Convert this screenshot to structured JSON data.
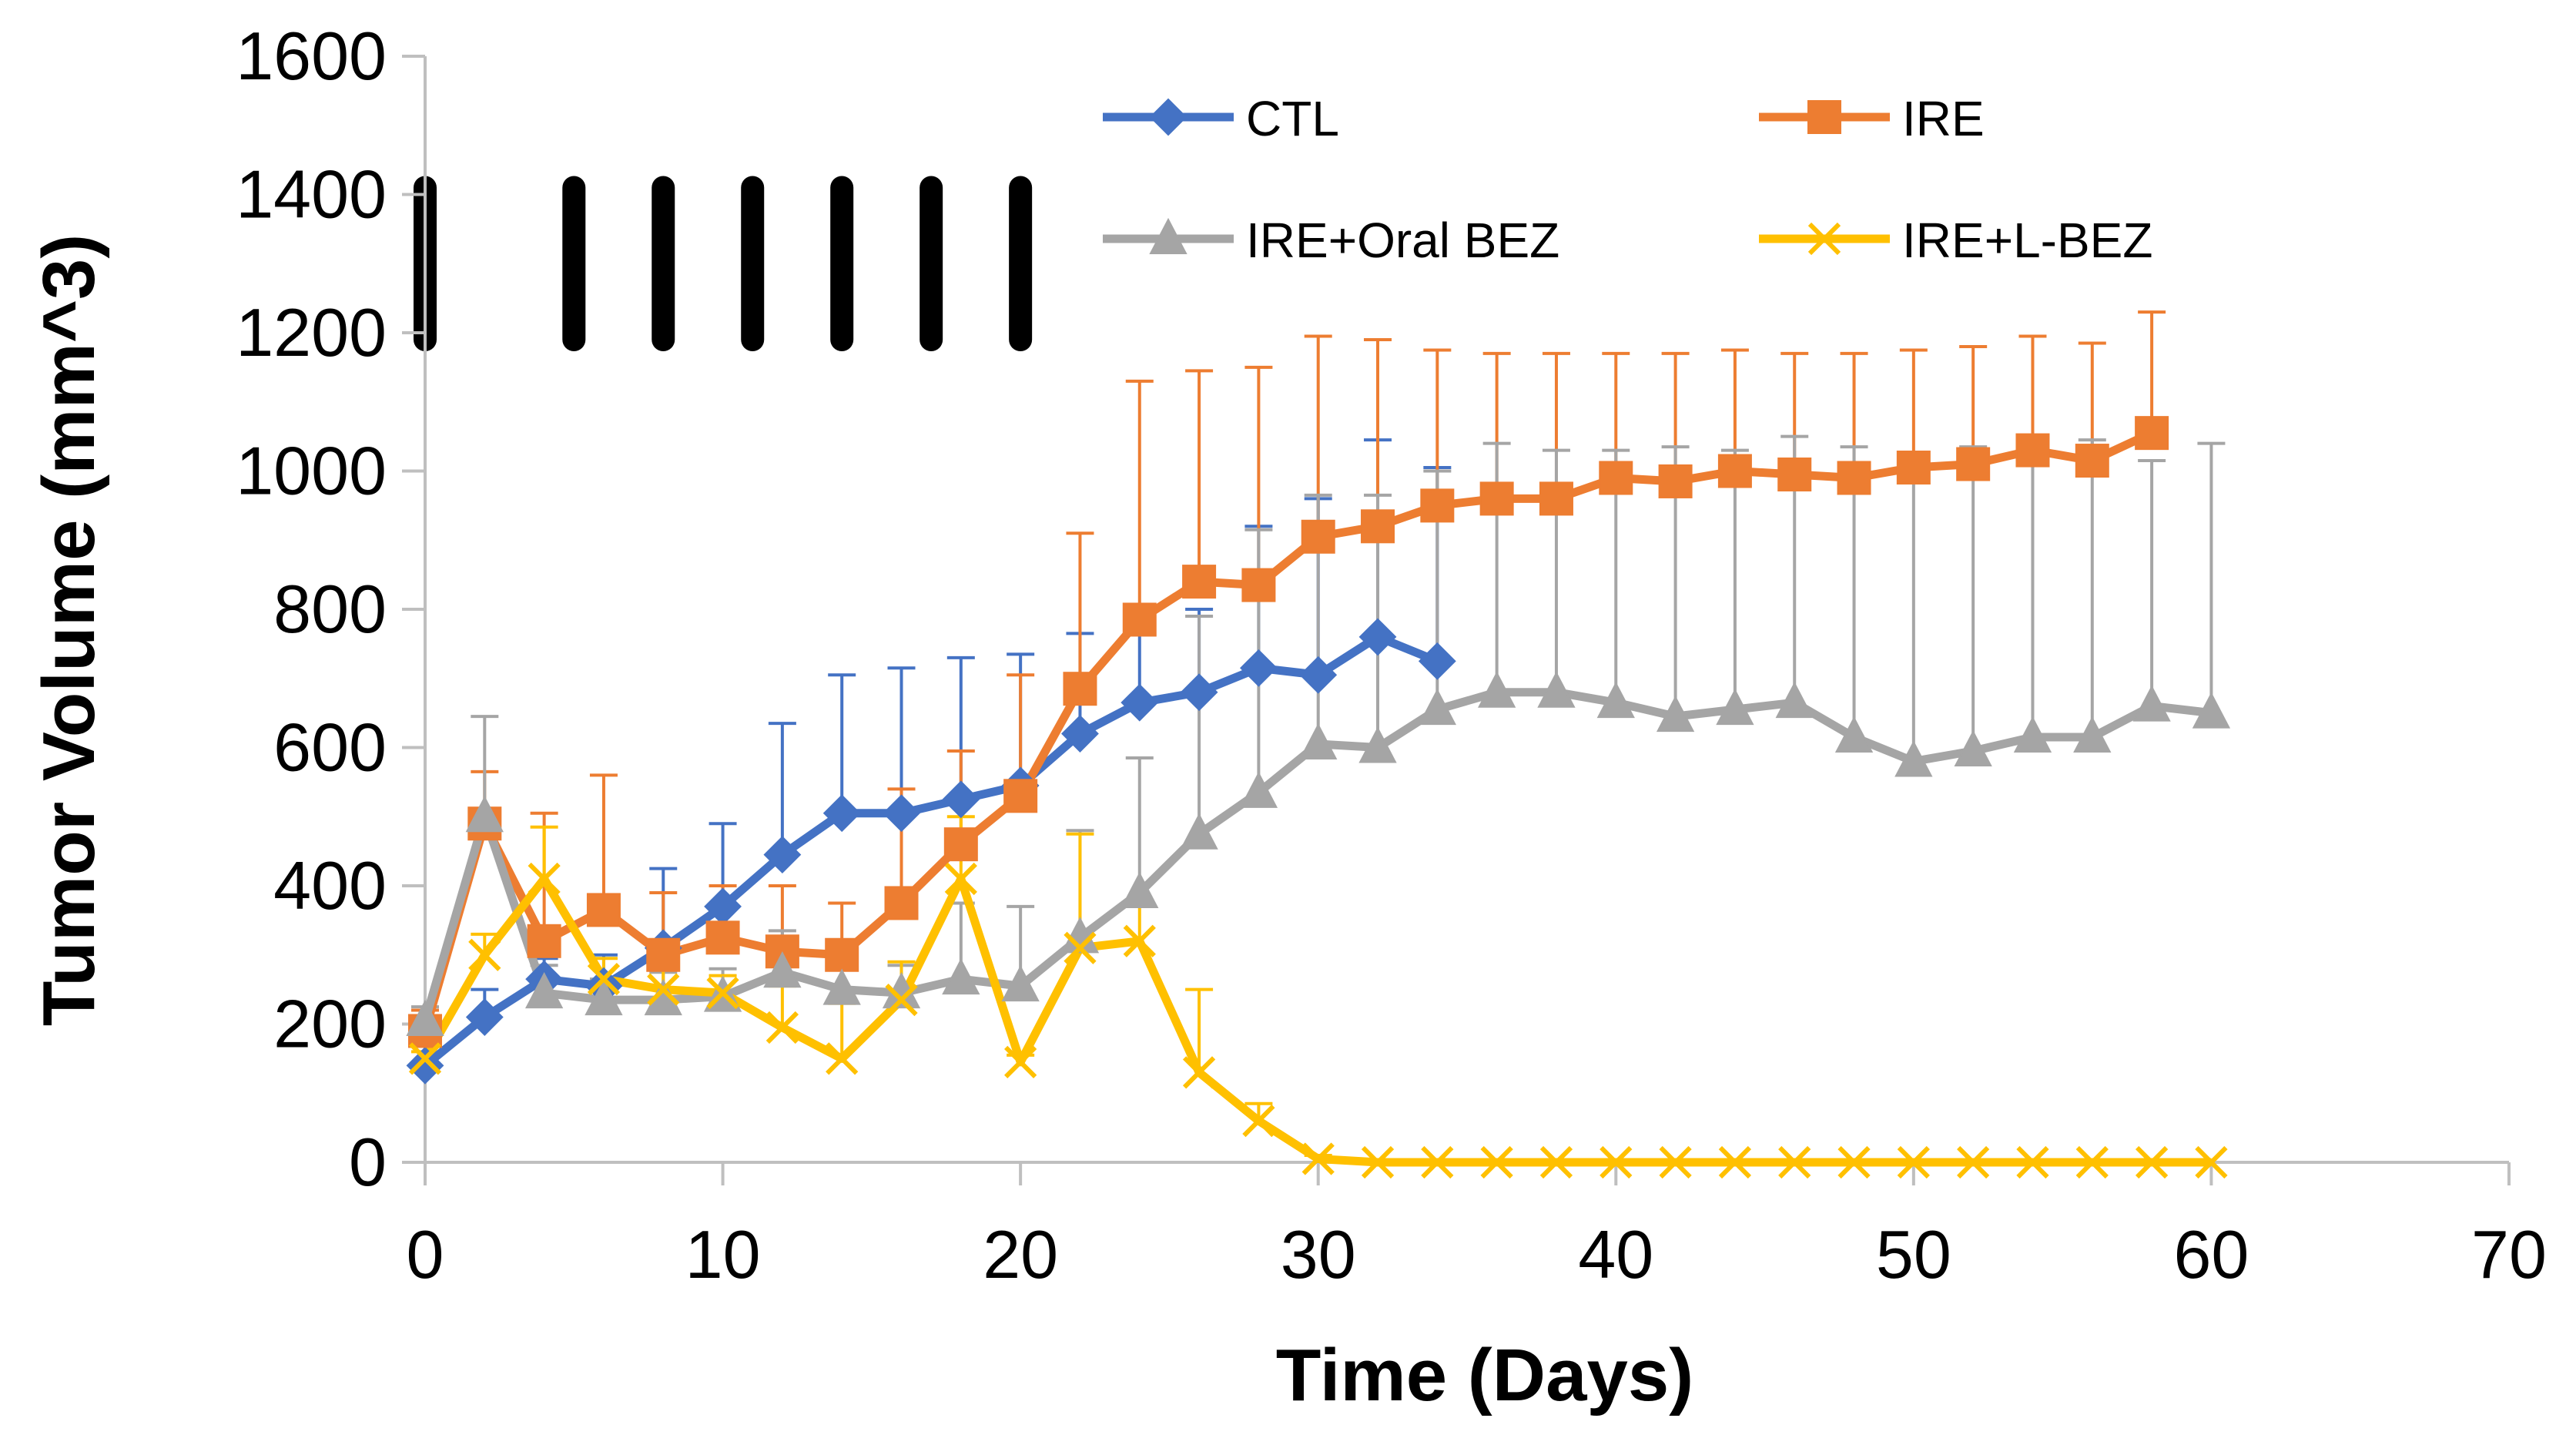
{
  "chart_data": {
    "type": "line",
    "title": "",
    "xlabel": "Time (Days)",
    "ylabel": "Tumor Volume (mm^3)",
    "xlim": [
      0,
      70
    ],
    "ylim": [
      0,
      1600
    ],
    "xticks": [
      0,
      10,
      20,
      30,
      40,
      50,
      60,
      70
    ],
    "yticks": [
      0,
      200,
      400,
      600,
      800,
      1000,
      1200,
      1400,
      1600
    ],
    "grid": false,
    "legend_position": "top-right",
    "treatment_days": [
      0,
      5,
      8,
      11,
      14,
      17,
      20
    ],
    "treatment_marker_range": [
      1190,
      1410
    ],
    "series": [
      {
        "name": "CTL",
        "color": "#4472C4",
        "marker": "diamond",
        "x": [
          0,
          2,
          4,
          6,
          8,
          10,
          12,
          14,
          16,
          18,
          20,
          22,
          24,
          26,
          28,
          30,
          32,
          34
        ],
        "y": [
          140,
          210,
          265,
          255,
          310,
          370,
          445,
          505,
          505,
          525,
          545,
          620,
          665,
          680,
          715,
          705,
          760,
          725
        ],
        "error": [
          30,
          40,
          30,
          45,
          115,
          120,
          190,
          200,
          210,
          205,
          190,
          145,
          110,
          120,
          205,
          255,
          285,
          280
        ]
      },
      {
        "name": "IRE",
        "color": "#ED7D31",
        "marker": "square",
        "x": [
          0,
          2,
          4,
          6,
          8,
          10,
          12,
          14,
          16,
          18,
          20,
          22,
          24,
          26,
          28,
          30,
          32,
          34,
          36,
          38,
          40,
          42,
          44,
          46,
          48,
          50,
          52,
          54,
          56,
          58
        ],
        "y": [
          190,
          490,
          320,
          365,
          300,
          325,
          305,
          300,
          375,
          460,
          530,
          685,
          785,
          840,
          835,
          905,
          920,
          950,
          960,
          960,
          990,
          985,
          1000,
          995,
          990,
          1005,
          1010,
          1030,
          1015,
          1055
        ],
        "error": [
          30,
          75,
          185,
          195,
          90,
          75,
          95,
          75,
          165,
          135,
          175,
          225,
          345,
          305,
          315,
          290,
          270,
          225,
          210,
          210,
          180,
          185,
          175,
          175,
          180,
          170,
          170,
          165,
          170,
          175
        ]
      },
      {
        "name": "IRE+Oral BEZ",
        "color": "#A5A5A5",
        "marker": "triangle",
        "x": [
          0,
          2,
          4,
          6,
          8,
          10,
          12,
          14,
          16,
          18,
          20,
          22,
          24,
          26,
          28,
          30,
          32,
          34,
          36,
          38,
          40,
          42,
          44,
          46,
          48,
          50,
          52,
          54,
          56,
          58,
          60
        ],
        "y": [
          205,
          500,
          245,
          235,
          235,
          240,
          275,
          250,
          245,
          265,
          255,
          325,
          390,
          475,
          535,
          605,
          600,
          655,
          680,
          680,
          665,
          645,
          655,
          665,
          615,
          580,
          595,
          615,
          615,
          660,
          650
        ],
        "error": [
          20,
          145,
          40,
          30,
          40,
          40,
          60,
          50,
          40,
          110,
          115,
          155,
          195,
          315,
          380,
          360,
          365,
          345,
          360,
          350,
          365,
          390,
          375,
          385,
          420,
          440,
          440,
          425,
          430,
          355,
          390
        ]
      },
      {
        "name": "IRE+L-BEZ",
        "color": "#FFC000",
        "marker": "x",
        "x": [
          0,
          2,
          4,
          6,
          8,
          10,
          12,
          14,
          16,
          18,
          20,
          22,
          24,
          26,
          28,
          30,
          32,
          34,
          36,
          38,
          40,
          42,
          44,
          46,
          48,
          50,
          52,
          54,
          56,
          58,
          60
        ],
        "y": [
          150,
          300,
          410,
          265,
          250,
          245,
          195,
          150,
          235,
          410,
          145,
          310,
          320,
          130,
          60,
          5,
          0,
          0,
          0,
          0,
          0,
          0,
          0,
          0,
          0,
          0,
          0,
          0,
          0,
          0,
          0
        ],
        "error": [
          10,
          30,
          75,
          30,
          30,
          25,
          60,
          80,
          55,
          90,
          10,
          165,
          50,
          120,
          25,
          5,
          0,
          0,
          0,
          0,
          0,
          0,
          0,
          0,
          0,
          0,
          0,
          0,
          0,
          0,
          0
        ]
      }
    ]
  }
}
